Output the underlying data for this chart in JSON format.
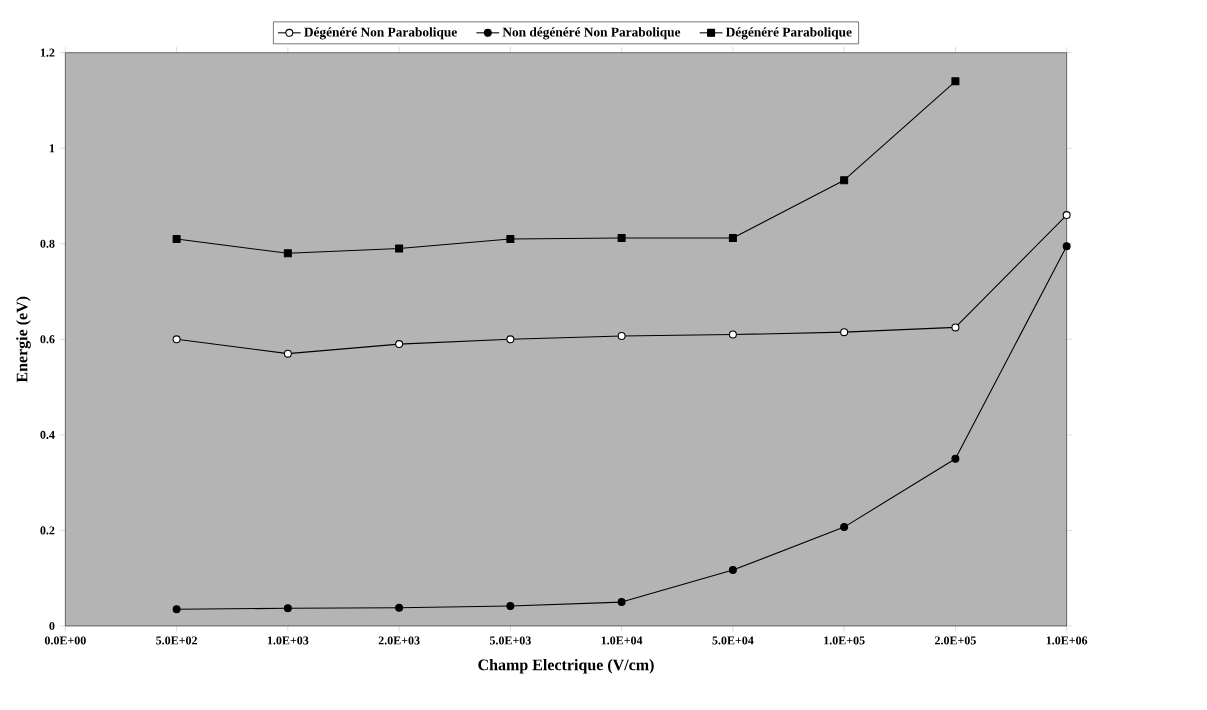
{
  "chart_data": {
    "type": "line",
    "xlabel": "Champ Electrique (V/cm)",
    "ylabel": "Energie (eV)",
    "categories": [
      "0.0E+00",
      "5.0E+02",
      "1.0E+03",
      "2.0E+03",
      "5.0E+03",
      "1.0E+04",
      "5.0E+04",
      "1.0E+05",
      "2.0E+05",
      "1.0E+06"
    ],
    "series": [
      {
        "name": "Dégénéré Non Parabolique",
        "color": "#000000",
        "marker": "circle",
        "values": [
          null,
          0.6,
          0.57,
          0.59,
          0.6,
          0.607,
          0.61,
          0.615,
          0.625,
          0.86
        ]
      },
      {
        "name": "Non dégénéré Non Parabolique",
        "color": "#000000",
        "marker": "circle",
        "values": [
          null,
          0.035,
          0.037,
          0.038,
          0.042,
          0.05,
          0.117,
          0.207,
          0.35,
          0.795
        ]
      },
      {
        "name": "Dégénéré  Parabolique",
        "color": "#000000",
        "marker": "square",
        "values": [
          null,
          0.81,
          0.78,
          0.79,
          0.81,
          0.812,
          0.812,
          0.933,
          1.14,
          null
        ]
      }
    ],
    "ylim": [
      0,
      1.2
    ],
    "yticks": [
      0,
      0.2,
      0.4,
      0.6,
      0.8,
      1,
      1.2
    ],
    "legend": "top",
    "grid": false
  }
}
